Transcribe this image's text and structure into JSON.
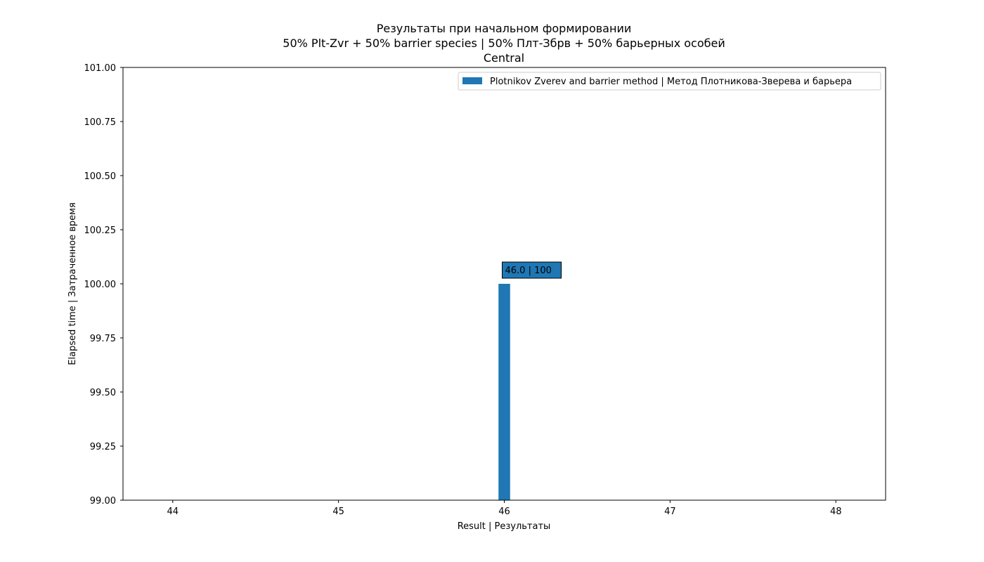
{
  "chart_data": {
    "type": "bar",
    "title_lines": [
      "Результаты при начальном формировании",
      "50% Plt-Zvr + 50% barrier species | 50% Плт-Збрв + 50% барьерных особей",
      "Central"
    ],
    "xlabel": "Result | Результаты",
    "ylabel": "Elapsed time | Затраченное время",
    "xlim": [
      43.7,
      48.3
    ],
    "ylim": [
      99.0,
      101.0
    ],
    "x_ticks": [
      44,
      45,
      46,
      47,
      48
    ],
    "x_tick_labels": [
      "44",
      "45",
      "46",
      "47",
      "48"
    ],
    "y_ticks": [
      99.0,
      99.25,
      99.5,
      99.75,
      100.0,
      100.25,
      100.5,
      100.75,
      101.0
    ],
    "y_tick_labels": [
      "99.00",
      "99.25",
      "99.50",
      "99.75",
      "100.00",
      "100.25",
      "100.50",
      "100.75",
      "101.00"
    ],
    "grid": false,
    "legend_position": "top-right",
    "series": [
      {
        "name": "Plotnikov Zverev and barrier method | Метод Плотникова-Зверева и барьера",
        "color": "#1f77b4",
        "bar_width": 0.07,
        "points": [
          {
            "x": 46.0,
            "y": 100,
            "label": "46.0 | 100"
          }
        ]
      }
    ]
  }
}
